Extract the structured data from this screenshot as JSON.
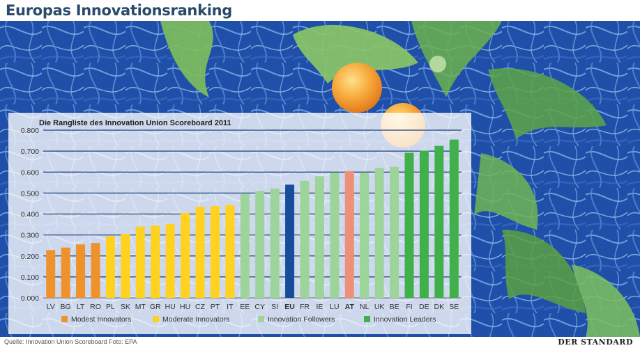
{
  "headline": "Europas Innovationsranking",
  "footer": {
    "source": "Quelle: Innovation Union Scoreboard  Foto: EPA",
    "logo": "DER STANDARD"
  },
  "colors": {
    "modest": "#f0922b",
    "moderate": "#ffd21f",
    "followers": "#9cd49a",
    "leaders": "#3fb04a",
    "eu": "#174e9c",
    "at": "#ef8f79",
    "gridline": "#1c3f7a",
    "title_color": "#2a4a6b"
  },
  "chart_data": {
    "type": "bar",
    "title": "Die Rangliste des Innovation Union Scoreboard 2011",
    "xlabel": "",
    "ylabel": "",
    "ylim": [
      0,
      0.8
    ],
    "yticks": [
      "0.000",
      "0.100",
      "0.200",
      "0.300",
      "0.400",
      "0.500",
      "0.600",
      "0.700",
      "0.800"
    ],
    "categories": [
      "LV",
      "BG",
      "LT",
      "RO",
      "PL",
      "SK",
      "MT",
      "GR",
      "HU",
      "HU",
      "CZ",
      "PT",
      "IT",
      "EE",
      "CY",
      "SI",
      "EU",
      "FR",
      "IE",
      "LU",
      "AT",
      "NL",
      "UK",
      "BE",
      "FI",
      "DE",
      "DK",
      "SE"
    ],
    "values": [
      0.228,
      0.24,
      0.255,
      0.262,
      0.295,
      0.305,
      0.34,
      0.345,
      0.352,
      0.405,
      0.435,
      0.438,
      0.442,
      0.495,
      0.51,
      0.522,
      0.54,
      0.558,
      0.58,
      0.598,
      0.605,
      0.598,
      0.62,
      0.625,
      0.692,
      0.702,
      0.725,
      0.755
    ],
    "groups": [
      "modest",
      "modest",
      "modest",
      "modest",
      "moderate",
      "moderate",
      "moderate",
      "moderate",
      "moderate",
      "moderate",
      "moderate",
      "moderate",
      "moderate",
      "followers",
      "followers",
      "followers",
      "eu",
      "followers",
      "followers",
      "followers",
      "at",
      "followers",
      "followers",
      "followers",
      "leaders",
      "leaders",
      "leaders",
      "leaders"
    ],
    "bold_labels": [
      "EU",
      "AT"
    ],
    "grid": true,
    "legend_position": "bottom",
    "legend": [
      {
        "group": "modest",
        "label": "Modest Innovators"
      },
      {
        "group": "moderate",
        "label": "Moderate Innovators"
      },
      {
        "group": "followers",
        "label": "Innovation Followers"
      },
      {
        "group": "leaders",
        "label": "Innovation Leaders"
      }
    ]
  }
}
